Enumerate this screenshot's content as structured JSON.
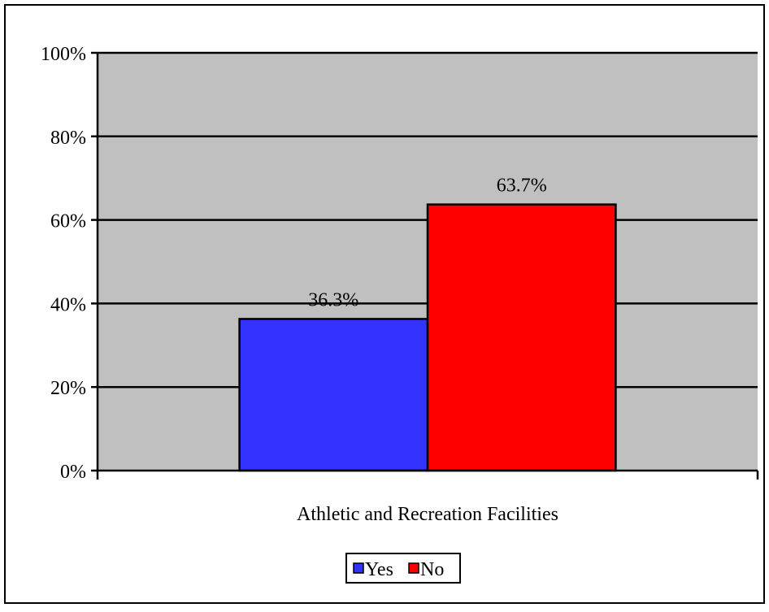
{
  "chart_data": {
    "type": "bar",
    "categories": [
      "Athletic and Recreation Facilities"
    ],
    "series": [
      {
        "name": "Yes",
        "values": [
          36.3
        ],
        "color": "#3333ff",
        "label": "36.3%"
      },
      {
        "name": "No",
        "values": [
          63.7
        ],
        "color": "#ff0000",
        "label": "63.7%"
      }
    ],
    "ylim": [
      0,
      100
    ],
    "yticks": [
      {
        "value": 0,
        "label": "0%"
      },
      {
        "value": 20,
        "label": "20%"
      },
      {
        "value": 40,
        "label": "40%"
      },
      {
        "value": 60,
        "label": "60%"
      },
      {
        "value": 80,
        "label": "80%"
      },
      {
        "value": 100,
        "label": "100%"
      }
    ],
    "grid": true,
    "plot_background": "#c0c0c0",
    "legend_position": "bottom"
  }
}
